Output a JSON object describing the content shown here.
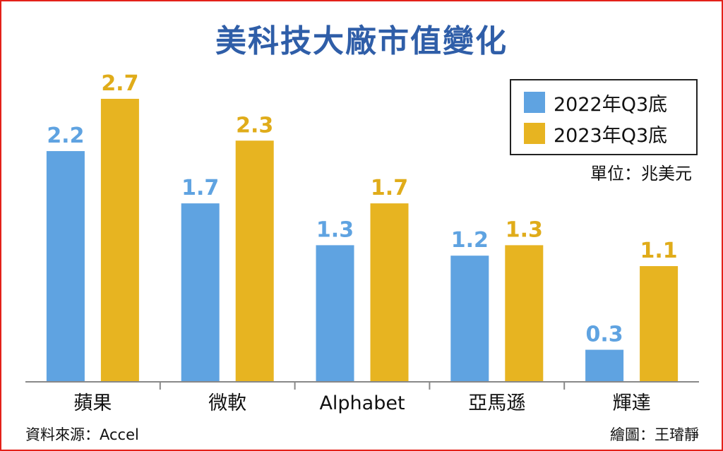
{
  "title": "美科技大廠市值變化",
  "unit_label": "單位：兆美元",
  "source": "資料來源：Accel",
  "credit": "繪圖：王璿靜",
  "colors": {
    "series_2022": "#5fa3e1",
    "series_2023": "#e7b421",
    "title": "#2f5ea8",
    "frame": "#e32119"
  },
  "chart_data": {
    "type": "bar",
    "title": "美科技大廠市值變化",
    "categories": [
      "蘋果",
      "微軟",
      "Alphabet",
      "亞馬遜",
      "輝達"
    ],
    "series": [
      {
        "name": "2022年Q3底",
        "values": [
          2.2,
          1.7,
          1.3,
          1.2,
          0.3
        ]
      },
      {
        "name": "2023年Q3底",
        "values": [
          2.7,
          2.3,
          1.7,
          1.3,
          1.1
        ]
      }
    ],
    "data_labels": [
      [
        "2.2",
        "1.7",
        "1.3",
        "1.2",
        "0.3"
      ],
      [
        "2.7",
        "2.3",
        "1.7",
        "1.3",
        "1.1"
      ]
    ],
    "ylim": [
      0,
      2.7
    ],
    "legend": "top-right",
    "grid": false
  }
}
